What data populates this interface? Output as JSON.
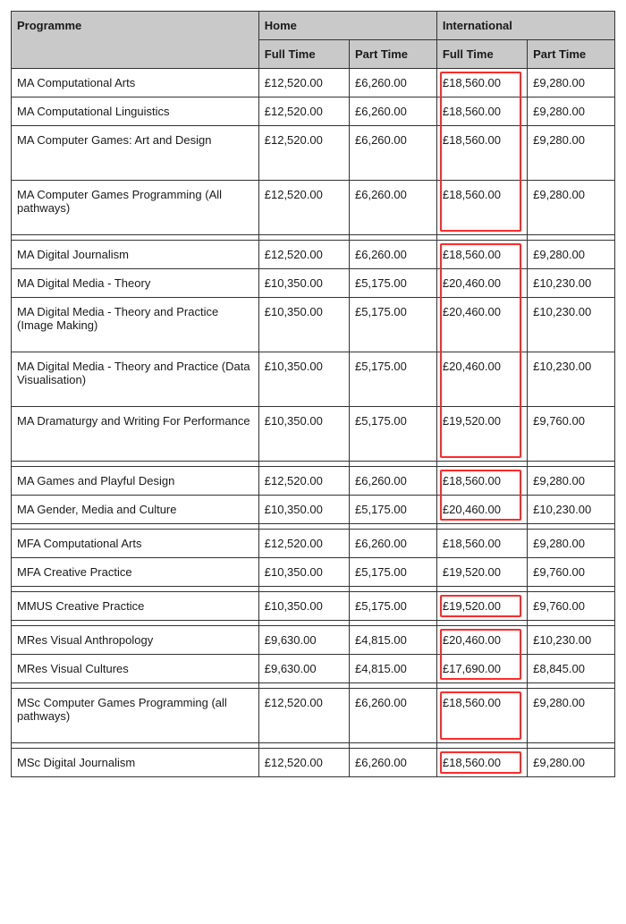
{
  "header": {
    "programme": "Programme",
    "home": "Home",
    "international": "International",
    "full_time": "Full Time",
    "part_time": "Part Time"
  },
  "highlight": {
    "color": "#ff2a2a",
    "inset_single": "3px 6px 3px 3px",
    "inset_group_top": "3px 6px -1px 3px",
    "inset_group_mid": "-1px 6px -1px 3px",
    "inset_group_bot": "-1px 6px 3px 3px"
  },
  "rows": [
    {
      "name": "MA Computational Arts",
      "hf": "£12,520.00",
      "hp": "£6,260.00",
      "if": "£18,560.00",
      "ip": "£9,280.00",
      "tall": false,
      "hl": "group_top"
    },
    {
      "name": "MA Computational Linguistics",
      "hf": "£12,520.00",
      "hp": "£6,260.00",
      "if": "£18,560.00",
      "ip": "£9,280.00",
      "tall": false,
      "hl": "group_mid"
    },
    {
      "name": "MA Computer Games: Art and Design",
      "hf": "£12,520.00",
      "hp": "£6,260.00",
      "if": "£18,560.00",
      "ip": "£9,280.00",
      "tall": true,
      "hl": "group_mid"
    },
    {
      "name": "MA Computer Games Programming (All pathways)",
      "hf": "£12,520.00",
      "hp": "£6,260.00",
      "if": "£18,560.00",
      "ip": "£9,280.00",
      "tall": true,
      "hl": "group_bot"
    },
    {
      "gap": true
    },
    {
      "name": "MA Digital Journalism",
      "hf": "£12,520.00",
      "hp": "£6,260.00",
      "if": "£18,560.00",
      "ip": "£9,280.00",
      "tall": false,
      "hl": "group_top"
    },
    {
      "name": "MA Digital Media - Theory",
      "hf": "£10,350.00",
      "hp": "£5,175.00",
      "if": "£20,460.00",
      "ip": "£10,230.00",
      "tall": false,
      "hl": "group_mid"
    },
    {
      "name": "MA Digital Media - Theory and Practice (Image Making)",
      "hf": "£10,350.00",
      "hp": "£5,175.00",
      "if": "£20,460.00",
      "ip": "£10,230.00",
      "tall": true,
      "hl": "group_mid"
    },
    {
      "name": "MA Digital Media - Theory and Practice (Data Visualisation)",
      "hf": "£10,350.00",
      "hp": "£5,175.00",
      "if": "£20,460.00",
      "ip": "£10,230.00",
      "tall": true,
      "hl": "group_mid"
    },
    {
      "name": "MA Dramaturgy and Writing For Performance",
      "hf": "£10,350.00",
      "hp": "£5,175.00",
      "if": "£19,520.00",
      "ip": "£9,760.00",
      "tall": true,
      "hl": "group_bot"
    },
    {
      "gap": true
    },
    {
      "name": "MA Games and Playful Design",
      "hf": "£12,520.00",
      "hp": "£6,260.00",
      "if": "£18,560.00",
      "ip": "£9,280.00",
      "tall": false,
      "hl": "group_top"
    },
    {
      "name": "MA Gender, Media and Culture",
      "hf": "£10,350.00",
      "hp": "£5,175.00",
      "if": "£20,460.00",
      "ip": "£10,230.00",
      "tall": false,
      "hl": "group_bot"
    },
    {
      "gap": true
    },
    {
      "name": "MFA Computational Arts",
      "hf": "£12,520.00",
      "hp": "£6,260.00",
      "if": "£18,560.00",
      "ip": "£9,280.00",
      "tall": false,
      "hl": "none"
    },
    {
      "name": "MFA Creative Practice",
      "hf": "£10,350.00",
      "hp": "£5,175.00",
      "if": "£19,520.00",
      "ip": "£9,760.00",
      "tall": false,
      "hl": "none"
    },
    {
      "gap": true
    },
    {
      "name": "MMUS Creative Practice",
      "hf": "£10,350.00",
      "hp": "£5,175.00",
      "if": "£19,520.00",
      "ip": "£9,760.00",
      "tall": false,
      "hl": "single"
    },
    {
      "gap": true
    },
    {
      "name": "MRes Visual Anthropology",
      "hf": "£9,630.00",
      "hp": "£4,815.00",
      "if": "£20,460.00",
      "ip": "£10,230.00",
      "tall": false,
      "hl": "group_top"
    },
    {
      "name": "MRes Visual Cultures",
      "hf": "£9,630.00",
      "hp": "£4,815.00",
      "if": "£17,690.00",
      "ip": "£8,845.00",
      "tall": false,
      "hl": "group_bot"
    },
    {
      "gap": true
    },
    {
      "name": "MSc Computer Games Programming (all pathways)",
      "hf": "£12,520.00",
      "hp": "£6,260.00",
      "if": "£18,560.00",
      "ip": "£9,280.00",
      "tall": true,
      "hl": "single"
    },
    {
      "gap": true
    },
    {
      "name": "MSc Digital Journalism",
      "hf": "£12,520.00",
      "hp": "£6,260.00",
      "if": "£18,560.00",
      "ip": "£9,280.00",
      "tall": false,
      "hl": "single"
    }
  ]
}
